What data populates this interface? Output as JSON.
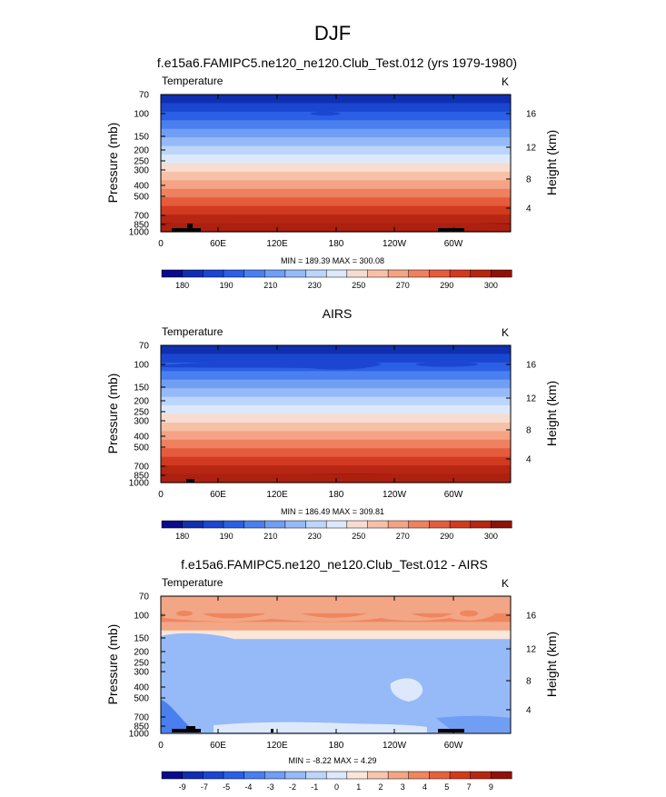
{
  "page_title": "DJF",
  "chart_data": [
    {
      "type": "heatmap",
      "title": "f.e15a6.FAMIPC5.ne120_ne120.Club_Test.012 (yrs 1979-1980)",
      "left_label": "Temperature",
      "units": "K",
      "ylabel": "Pressure (mb)",
      "ylabel_right": "Height (km)",
      "pressure_ticks": [
        "70",
        "100",
        "150",
        "200",
        "250",
        "300",
        "400",
        "500",
        "700",
        "850",
        "1000"
      ],
      "height_ticks": [
        "16",
        "12",
        "8",
        "4"
      ],
      "lon_ticks": [
        "0",
        "60E",
        "120E",
        "180",
        "120W",
        "60W"
      ],
      "stats_text": "MIN = 189.39  MAX = 300.08",
      "min": 189.39,
      "max": 300.08,
      "colorbar_labels": [
        "180",
        "190",
        "210",
        "230",
        "250",
        "270",
        "290",
        "300"
      ],
      "band_levels": [
        1,
        2,
        3,
        4,
        5,
        6,
        7,
        8,
        9,
        10,
        11,
        12,
        13,
        14,
        15,
        16
      ]
    },
    {
      "type": "heatmap",
      "title": "AIRS",
      "left_label": "Temperature",
      "units": "K",
      "ylabel": "Pressure (mb)",
      "ylabel_right": "Height (km)",
      "pressure_ticks": [
        "70",
        "100",
        "150",
        "200",
        "250",
        "300",
        "400",
        "500",
        "700",
        "850",
        "1000"
      ],
      "height_ticks": [
        "16",
        "12",
        "8",
        "4"
      ],
      "lon_ticks": [
        "0",
        "60E",
        "120E",
        "180",
        "120W",
        "60W"
      ],
      "stats_text": "MIN = 186.49  MAX = 309.81",
      "min": 186.49,
      "max": 309.81,
      "colorbar_labels": [
        "180",
        "190",
        "210",
        "230",
        "250",
        "270",
        "290",
        "300"
      ],
      "band_levels": [
        1,
        2,
        3,
        4,
        5,
        6,
        7,
        8,
        9,
        10,
        11,
        12,
        13,
        14,
        15,
        16
      ]
    },
    {
      "type": "heatmap",
      "title": "f.e15a6.FAMIPC5.ne120_ne120.Club_Test.012 - AIRS",
      "left_label": "Temperature",
      "units": "K",
      "ylabel": "Pressure (mb)",
      "ylabel_right": "Height (km)",
      "pressure_ticks": [
        "70",
        "100",
        "150",
        "200",
        "250",
        "300",
        "400",
        "500",
        "700",
        "850",
        "1000"
      ],
      "height_ticks": [
        "16",
        "12",
        "8",
        "4"
      ],
      "lon_ticks": [
        "0",
        "60E",
        "120E",
        "180",
        "120W",
        "60W"
      ],
      "stats_text": "MIN = -8.22  MAX =  4.29",
      "min": -8.22,
      "max": 4.29,
      "colorbar_labels": [
        "-9",
        "-7",
        "-5",
        "-4",
        "-3",
        "-2",
        "-1",
        "0",
        "1",
        "2",
        "3",
        "4",
        "5",
        "7",
        "9"
      ],
      "band_levels": [
        11,
        11,
        12,
        11,
        9,
        6,
        6,
        6,
        6,
        6,
        7,
        6,
        6,
        6,
        6,
        6
      ]
    }
  ],
  "colors": {
    "temp_palette": [
      "#0a0a8c",
      "#0f2fb0",
      "#1a46d0",
      "#2a5fe6",
      "#4a7ff0",
      "#6f9ef4",
      "#95baf7",
      "#bcd5fa",
      "#dde9fb",
      "#f7ddd0",
      "#f7c1a8",
      "#f5a385",
      "#ef8160",
      "#e45c3c",
      "#d23a1f",
      "#b72513",
      "#8e1208"
    ],
    "diff_palette": [
      "#0a0a8c",
      "#0f2fb0",
      "#1a46d0",
      "#2a5fe6",
      "#4a7ff0",
      "#6f9ef4",
      "#95baf7",
      "#bcd5fa",
      "#dde9fb",
      "#fbe6da",
      "#f7c6ad",
      "#f3a685",
      "#ee865f",
      "#e4623e",
      "#d23a1f",
      "#b72513",
      "#8e1208"
    ]
  }
}
